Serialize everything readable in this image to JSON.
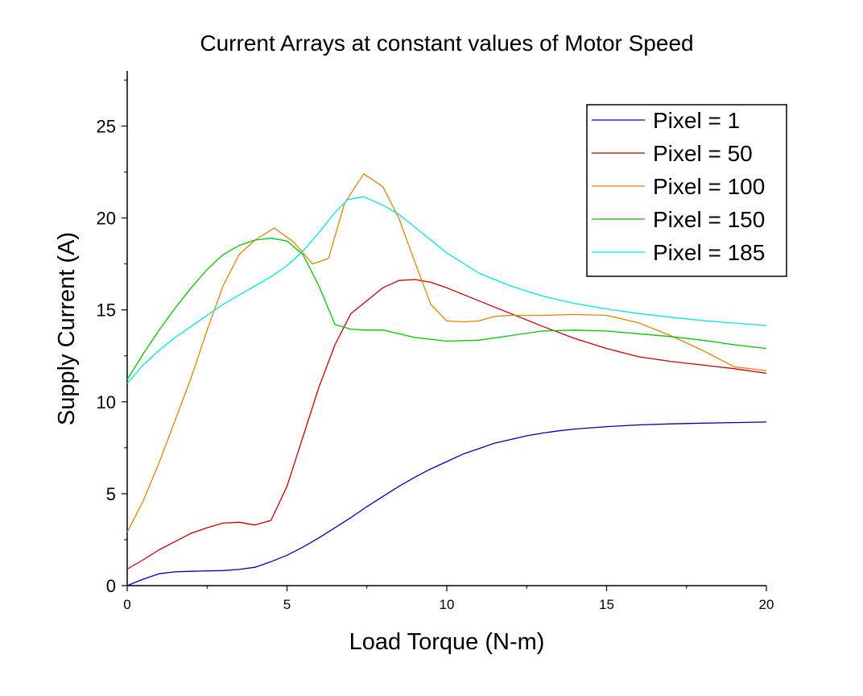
{
  "chart_data": {
    "type": "line",
    "title": "Current Arrays at constant values of Motor Speed",
    "xlabel": "Load Torque (N-m)",
    "ylabel": "Supply Current (A)",
    "xlim": [
      0,
      20
    ],
    "ylim": [
      0,
      28
    ],
    "x_ticks": [
      0,
      5,
      10,
      15,
      20
    ],
    "y_ticks": [
      0,
      5,
      10,
      15,
      20,
      25
    ],
    "grid": false,
    "legend_position": "top-right",
    "series": [
      {
        "name": "Pixel = 1",
        "color": "#0000b4",
        "x": [
          0,
          0.5,
          1,
          1.5,
          2,
          2.5,
          3,
          3.5,
          4,
          4.5,
          5,
          5.5,
          6,
          6.5,
          7,
          7.5,
          8,
          8.5,
          9,
          9.5,
          10,
          10.5,
          11,
          11.5,
          12,
          12.5,
          13,
          13.5,
          14,
          15,
          16,
          17,
          18,
          19,
          20
        ],
        "y": [
          0.0,
          0.35,
          0.65,
          0.75,
          0.78,
          0.8,
          0.82,
          0.88,
          1.0,
          1.3,
          1.65,
          2.1,
          2.6,
          3.15,
          3.7,
          4.3,
          4.85,
          5.4,
          5.9,
          6.35,
          6.75,
          7.15,
          7.45,
          7.75,
          7.95,
          8.15,
          8.3,
          8.42,
          8.52,
          8.65,
          8.74,
          8.8,
          8.84,
          8.87,
          8.9
        ]
      },
      {
        "name": "Pixel = 50",
        "color": "#c80000",
        "x": [
          0,
          0.5,
          1,
          1.5,
          2,
          2.5,
          3,
          3.5,
          4,
          4.5,
          5,
          5.5,
          6,
          6.5,
          7,
          7.5,
          8,
          8.5,
          9,
          9.5,
          10,
          10.5,
          11,
          11.5,
          12,
          13,
          14,
          15,
          16,
          17,
          18,
          19,
          20
        ],
        "y": [
          0.9,
          1.4,
          1.95,
          2.4,
          2.85,
          3.15,
          3.4,
          3.45,
          3.3,
          3.55,
          5.4,
          8.1,
          10.8,
          13.1,
          14.8,
          15.5,
          16.2,
          16.6,
          16.65,
          16.5,
          16.2,
          15.85,
          15.5,
          15.15,
          14.8,
          14.1,
          13.45,
          12.9,
          12.45,
          12.2,
          12.0,
          11.8,
          11.55
        ]
      },
      {
        "name": "Pixel = 100",
        "color": "#e68200",
        "x": [
          0,
          0.5,
          1,
          1.5,
          2,
          2.5,
          3,
          3.5,
          4,
          4.6,
          5.2,
          5.8,
          6.3,
          6.8,
          7.4,
          8,
          8.5,
          9,
          9.5,
          10,
          10.5,
          11,
          11.5,
          12,
          13,
          14,
          15,
          16,
          17,
          18,
          19,
          20
        ],
        "y": [
          2.9,
          4.6,
          6.7,
          9.0,
          11.3,
          13.9,
          16.3,
          18.0,
          18.8,
          19.45,
          18.7,
          17.5,
          17.8,
          20.8,
          22.4,
          21.7,
          20.0,
          17.6,
          15.3,
          14.4,
          14.35,
          14.4,
          14.65,
          14.7,
          14.7,
          14.75,
          14.7,
          14.3,
          13.6,
          12.8,
          11.9,
          11.7
        ]
      },
      {
        "name": "Pixel = 150",
        "color": "#00c800",
        "x": [
          0,
          0.5,
          1,
          1.5,
          2,
          2.5,
          3,
          3.5,
          4,
          4.5,
          5,
          5.5,
          6,
          6.5,
          7,
          7.5,
          8,
          8.5,
          9,
          10,
          11,
          12,
          13,
          14,
          15,
          16,
          17,
          18,
          19,
          20
        ],
        "y": [
          11.2,
          12.6,
          13.9,
          15.1,
          16.2,
          17.2,
          18.0,
          18.5,
          18.8,
          18.9,
          18.75,
          18.0,
          16.3,
          14.2,
          13.95,
          13.9,
          13.9,
          13.7,
          13.5,
          13.3,
          13.35,
          13.6,
          13.85,
          13.9,
          13.85,
          13.7,
          13.55,
          13.35,
          13.1,
          12.9
        ]
      },
      {
        "name": "Pixel = 185",
        "color": "#00e6e6",
        "x": [
          0,
          0.5,
          1,
          1.5,
          2,
          2.5,
          3,
          3.5,
          4,
          4.5,
          5,
          5.5,
          6,
          6.5,
          6.9,
          7.4,
          8,
          8.5,
          9,
          10,
          11,
          12,
          13,
          14,
          15,
          16,
          17,
          18,
          19,
          20
        ],
        "y": [
          11.0,
          12.0,
          12.8,
          13.5,
          14.1,
          14.7,
          15.3,
          15.8,
          16.3,
          16.8,
          17.4,
          18.2,
          19.2,
          20.3,
          21.0,
          21.15,
          20.7,
          20.2,
          19.5,
          18.1,
          17.0,
          16.3,
          15.75,
          15.35,
          15.05,
          14.8,
          14.6,
          14.42,
          14.28,
          14.15
        ]
      }
    ]
  }
}
